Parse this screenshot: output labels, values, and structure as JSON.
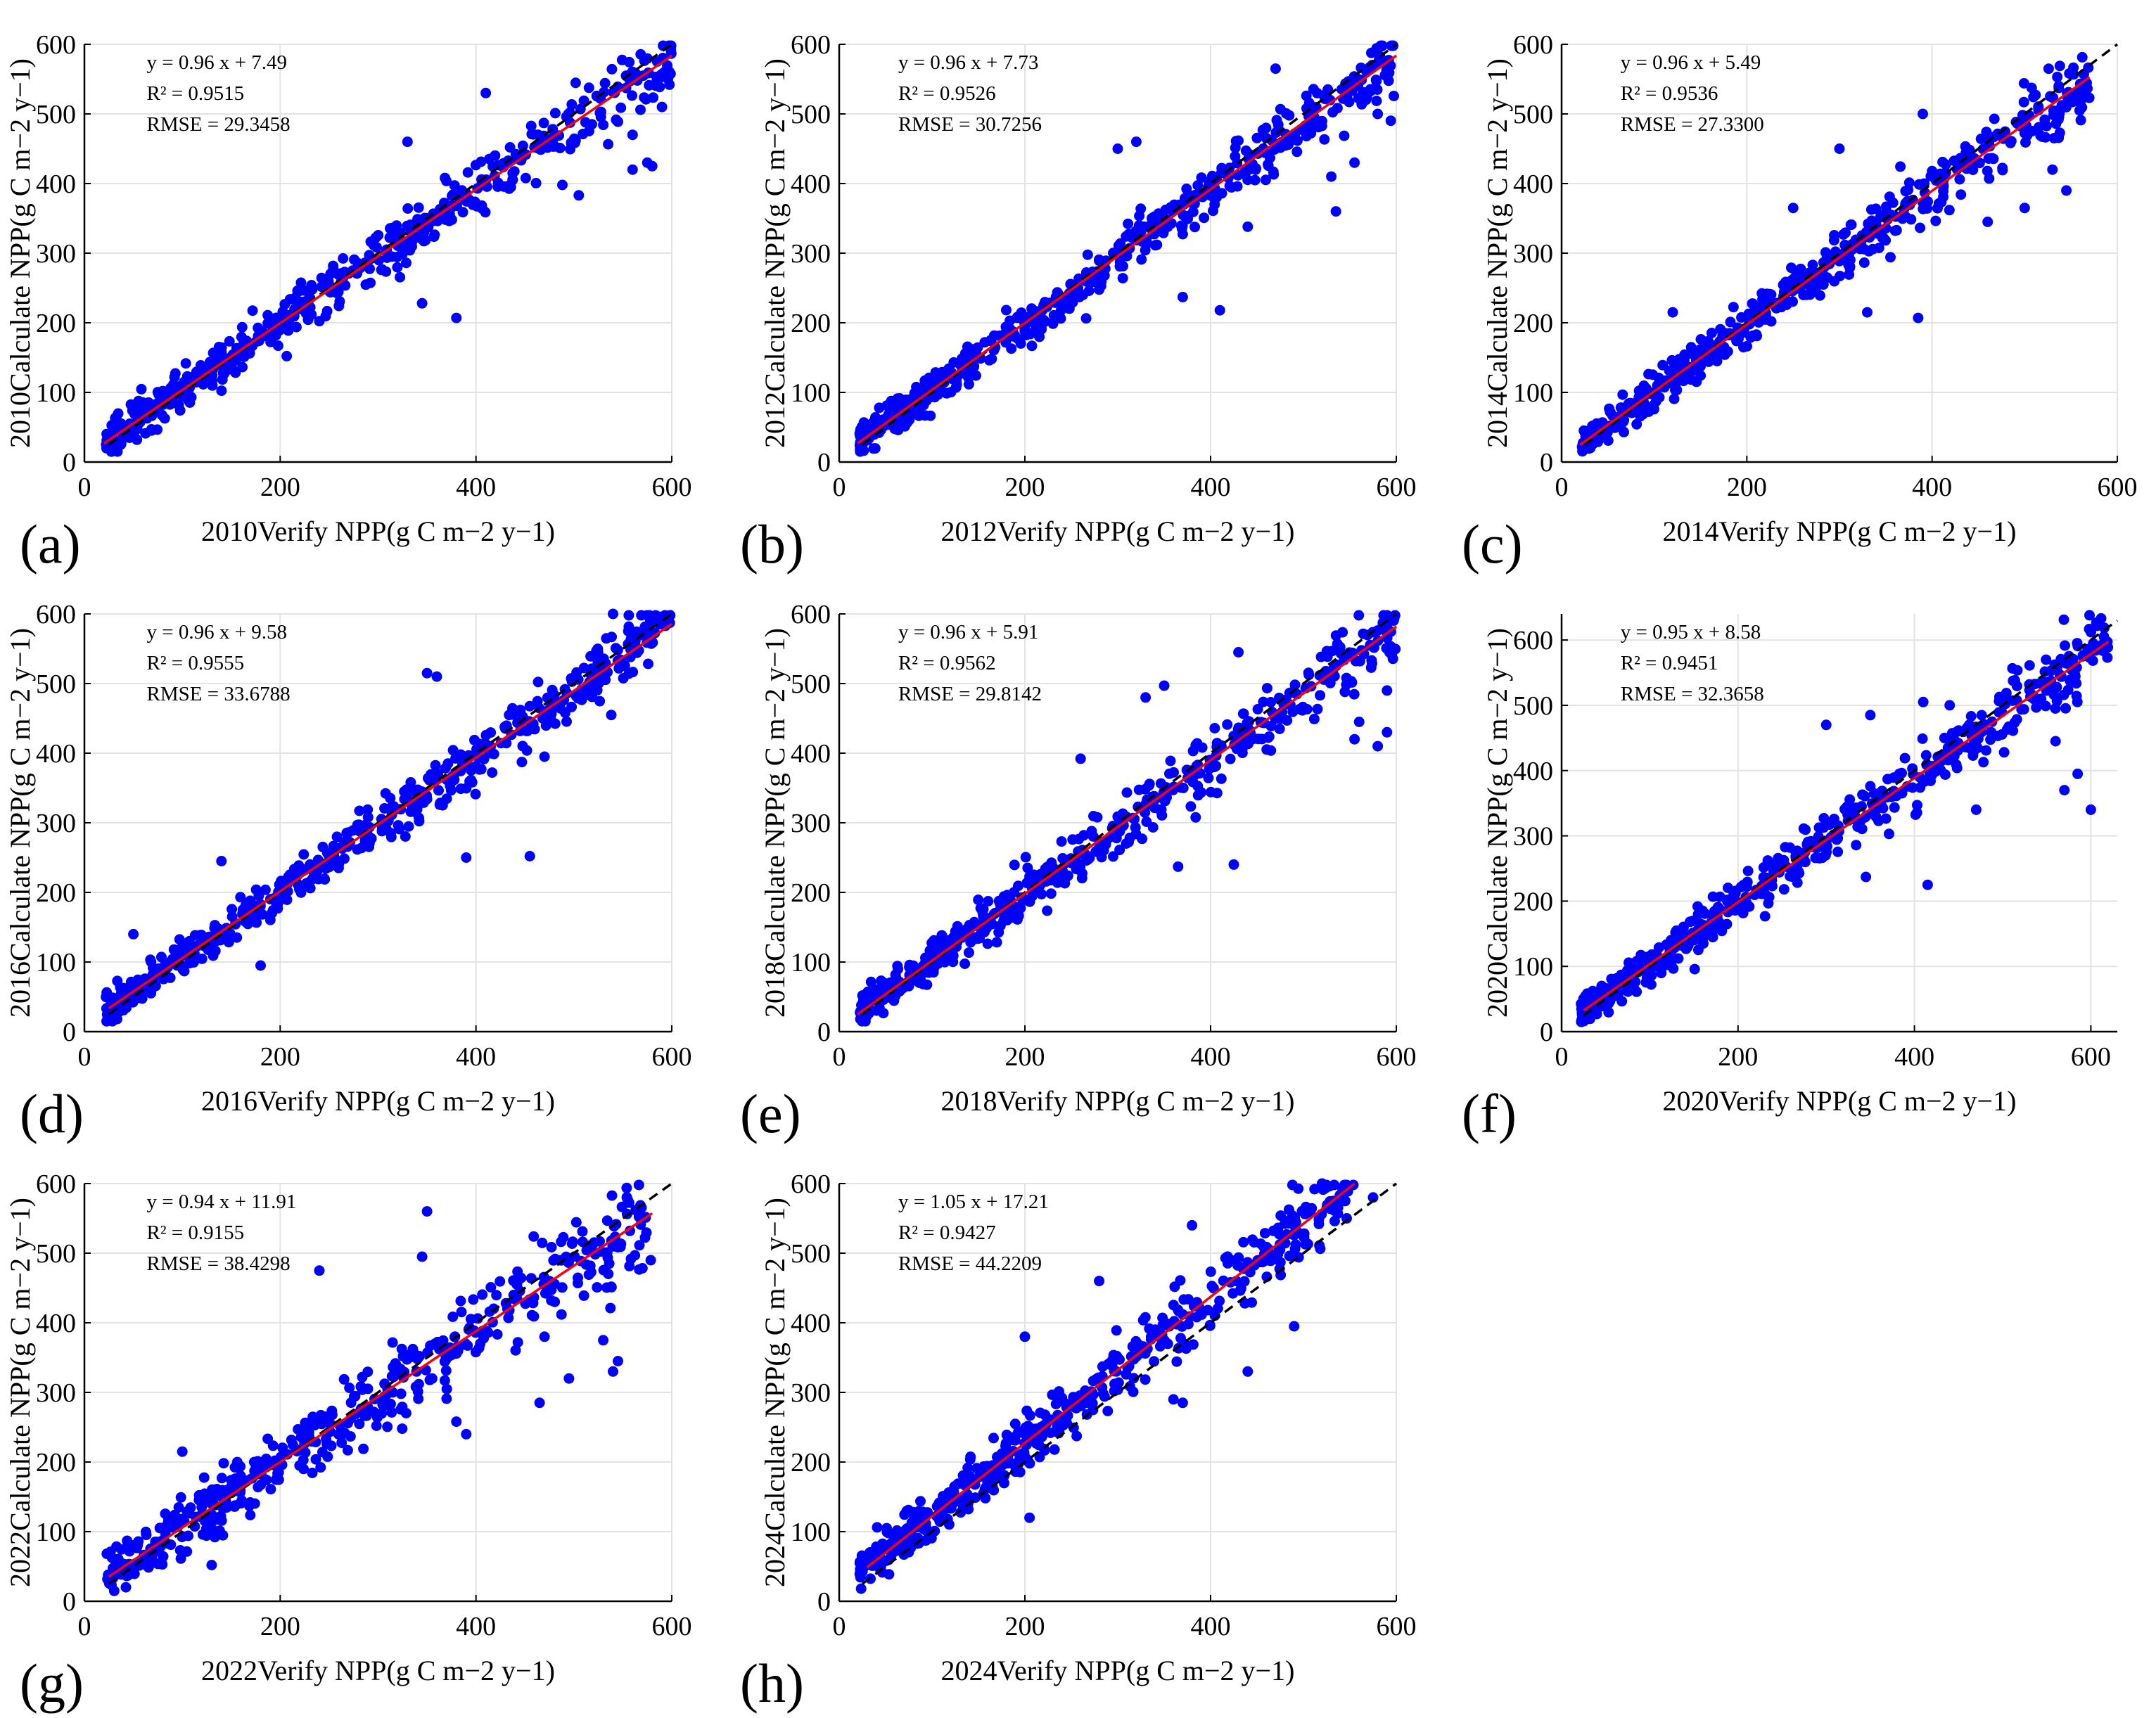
{
  "figure": {
    "style": {
      "point_color": "#0000ff",
      "fit_color": "#ff0000",
      "identity_color": "#000000",
      "grid_color": "#e3e3e3",
      "axis_color": "#000000"
    }
  },
  "chart_data": [
    {
      "type": "scatter",
      "panel_label": "(a)",
      "xlabel": "2010Verify NPP(g C m−2 y−1)",
      "ylabel": "2010Calculate NPP(g C m−2 y−1)",
      "xlim": [
        0,
        600
      ],
      "ylim": [
        0,
        600
      ],
      "xticks": [
        0,
        200,
        400,
        600
      ],
      "yticks": [
        0,
        100,
        200,
        300,
        400,
        500,
        600
      ],
      "grid": true,
      "fit": {
        "slope": 0.96,
        "intercept": 7.49,
        "x_range": [
          20,
          600
        ]
      },
      "stats": {
        "equation": "y = 0.96 x + 7.49",
        "r2": "R² = 0.9515",
        "rmse": "RMSE = 29.3458"
      },
      "n_points": 520,
      "noise": 16,
      "outliers": [
        [
          345,
          228
        ],
        [
          380,
          207
        ],
        [
          505,
          383
        ],
        [
          560,
          420
        ],
        [
          560,
          470
        ],
        [
          575,
          430
        ],
        [
          580,
          425
        ],
        [
          590,
          510
        ],
        [
          410,
          530
        ],
        [
          330,
          460
        ]
      ]
    },
    {
      "type": "scatter",
      "panel_label": "(b)",
      "xlabel": "2012Verify NPP(g C m−2 y−1)",
      "ylabel": "2012Calculate NPP(g C m−2 y−1)",
      "xlim": [
        0,
        600
      ],
      "ylim": [
        0,
        600
      ],
      "xticks": [
        0,
        200,
        400,
        600
      ],
      "yticks": [
        0,
        100,
        200,
        300,
        400,
        500,
        600
      ],
      "grid": true,
      "fit": {
        "slope": 0.96,
        "intercept": 7.73,
        "x_range": [
          20,
          600
        ]
      },
      "stats": {
        "equation": "y = 0.96 x + 7.73",
        "r2": "R² = 0.9526",
        "rmse": "RMSE = 30.7256"
      },
      "n_points": 520,
      "noise": 16,
      "outliers": [
        [
          370,
          237
        ],
        [
          410,
          218
        ],
        [
          440,
          338
        ],
        [
          530,
          410
        ],
        [
          535,
          360
        ],
        [
          555,
          430
        ],
        [
          580,
          500
        ],
        [
          300,
          450
        ],
        [
          320,
          460
        ],
        [
          470,
          565
        ]
      ]
    },
    {
      "type": "scatter",
      "panel_label": "(c)",
      "xlabel": "2014Verify NPP(g C m−2 y−1)",
      "ylabel": "2014Calculate NPP(g C m−2 y−1)",
      "xlim": [
        0,
        600
      ],
      "ylim": [
        0,
        600
      ],
      "xticks": [
        0,
        200,
        400,
        600
      ],
      "yticks": [
        0,
        100,
        200,
        300,
        400,
        500,
        600
      ],
      "grid": true,
      "fit": {
        "slope": 0.96,
        "intercept": 5.49,
        "x_range": [
          20,
          570
        ]
      },
      "stats": {
        "equation": "y = 0.96 x + 5.49",
        "r2": "R² = 0.9536",
        "rmse": "RMSE = 27.3300"
      },
      "n_points": 500,
      "noise": 16,
      "outliers": [
        [
          385,
          207
        ],
        [
          330,
          215
        ],
        [
          460,
          345
        ],
        [
          500,
          365
        ],
        [
          530,
          420
        ],
        [
          545,
          390
        ],
        [
          300,
          450
        ],
        [
          390,
          500
        ],
        [
          120,
          215
        ],
        [
          250,
          365
        ]
      ]
    },
    {
      "type": "scatter",
      "panel_label": "(d)",
      "xlabel": "2016Verify NPP(g C m−2 y−1)",
      "ylabel": "2016Calculate NPP(g C m−2 y−1)",
      "xlim": [
        0,
        600
      ],
      "ylim": [
        0,
        600
      ],
      "xticks": [
        0,
        200,
        400,
        600
      ],
      "yticks": [
        0,
        100,
        200,
        300,
        400,
        500,
        600
      ],
      "grid": true,
      "fit": {
        "slope": 0.96,
        "intercept": 9.58,
        "x_range": [
          25,
          600
        ]
      },
      "stats": {
        "equation": "y = 0.96 x + 9.58",
        "r2": "R² = 0.9555",
        "rmse": "RMSE = 33.6788"
      },
      "n_points": 520,
      "noise": 16,
      "outliers": [
        [
          390,
          250
        ],
        [
          455,
          252
        ],
        [
          470,
          395
        ],
        [
          180,
          95
        ],
        [
          350,
          515
        ],
        [
          360,
          510
        ],
        [
          140,
          245
        ],
        [
          50,
          140
        ],
        [
          540,
          600
        ]
      ]
    },
    {
      "type": "scatter",
      "panel_label": "(e)",
      "xlabel": "2018Verify NPP(g C m−2 y−1)",
      "ylabel": "2018Calculate NPP(g C m−2 y−1)",
      "xlim": [
        0,
        600
      ],
      "ylim": [
        0,
        600
      ],
      "xticks": [
        0,
        200,
        400,
        600
      ],
      "yticks": [
        0,
        100,
        200,
        300,
        400,
        500,
        600
      ],
      "grid": true,
      "fit": {
        "slope": 0.96,
        "intercept": 5.91,
        "x_range": [
          20,
          600
        ]
      },
      "stats": {
        "equation": "y = 0.96 x + 5.91",
        "r2": "R² = 0.9562",
        "rmse": "RMSE = 29.8142"
      },
      "n_points": 520,
      "noise": 16,
      "outliers": [
        [
          365,
          237
        ],
        [
          425,
          240
        ],
        [
          555,
          420
        ],
        [
          560,
          445
        ],
        [
          580,
          410
        ],
        [
          590,
          430
        ],
        [
          590,
          490
        ],
        [
          260,
          392
        ],
        [
          330,
          480
        ],
        [
          350,
          497
        ],
        [
          430,
          545
        ]
      ]
    },
    {
      "type": "scatter",
      "panel_label": "(f)",
      "xlabel": "2020Verify NPP(g C m−2 y−1)",
      "ylabel": "2020Calculate NPP(g C m−2 y−1)",
      "xlim": [
        0,
        630
      ],
      "ylim": [
        0,
        640
      ],
      "xticks": [
        0,
        200,
        400,
        600
      ],
      "yticks": [
        0,
        100,
        200,
        300,
        400,
        500,
        600
      ],
      "grid": true,
      "fit": {
        "slope": 0.95,
        "intercept": 8.58,
        "x_range": [
          25,
          620
        ]
      },
      "stats": {
        "equation": "y = 0.95 x + 8.58",
        "r2": "R² = 0.9451",
        "rmse": "RMSE = 32.3658"
      },
      "n_points": 520,
      "noise": 17,
      "outliers": [
        [
          345,
          237
        ],
        [
          415,
          225
        ],
        [
          470,
          340
        ],
        [
          560,
          445
        ],
        [
          570,
          370
        ],
        [
          585,
          395
        ],
        [
          600,
          340
        ],
        [
          300,
          470
        ],
        [
          350,
          485
        ],
        [
          410,
          505
        ],
        [
          440,
          500
        ]
      ]
    },
    {
      "type": "scatter",
      "panel_label": "(g)",
      "xlabel": "2022Verify NPP(g C m−2 y−1)",
      "ylabel": "2022Calculate NPP(g C m−2 y−1)",
      "xlim": [
        0,
        600
      ],
      "ylim": [
        0,
        600
      ],
      "xticks": [
        0,
        200,
        400,
        600
      ],
      "yticks": [
        0,
        100,
        200,
        300,
        400,
        500,
        600
      ],
      "grid": true,
      "fit": {
        "slope": 0.94,
        "intercept": 11.91,
        "x_range": [
          25,
          580
        ]
      },
      "stats": {
        "equation": "y = 0.94 x + 11.91",
        "r2": "R² = 0.9155",
        "rmse": "RMSE = 38.4298"
      },
      "n_points": 480,
      "noise": 24,
      "outliers": [
        [
          350,
          560
        ],
        [
          345,
          495
        ],
        [
          240,
          475
        ],
        [
          380,
          258
        ],
        [
          390,
          240
        ],
        [
          465,
          285
        ],
        [
          470,
          380
        ],
        [
          495,
          320
        ],
        [
          530,
          375
        ],
        [
          540,
          330
        ],
        [
          545,
          345
        ],
        [
          130,
          52
        ],
        [
          100,
          215
        ]
      ]
    },
    {
      "type": "scatter",
      "panel_label": "(h)",
      "xlabel": "2024Verify NPP(g C m−2 y−1)",
      "ylabel": "2024Calculate NPP(g C m−2 y−1)",
      "xlim": [
        0,
        600
      ],
      "ylim": [
        0,
        600
      ],
      "xticks": [
        0,
        200,
        400,
        600
      ],
      "yticks": [
        0,
        100,
        200,
        300,
        400,
        500,
        600
      ],
      "grid": true,
      "fit": {
        "slope": 1.05,
        "intercept": 17.21,
        "x_range": [
          30,
          555
        ]
      },
      "stats": {
        "equation": "y = 1.05 x + 17.21",
        "r2": "R² = 0.9427",
        "rmse": "RMSE = 44.2209"
      },
      "n_points": 500,
      "noise": 20,
      "outliers": [
        [
          205,
          120
        ],
        [
          440,
          330
        ],
        [
          360,
          290
        ],
        [
          370,
          285
        ],
        [
          490,
          395
        ],
        [
          200,
          380
        ],
        [
          280,
          460
        ],
        [
          380,
          540
        ],
        [
          520,
          600
        ],
        [
          575,
          580
        ]
      ]
    }
  ]
}
